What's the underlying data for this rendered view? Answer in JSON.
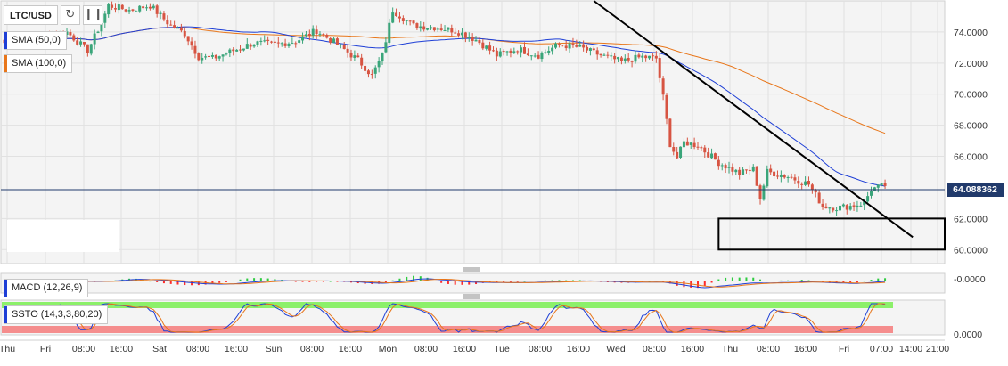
{
  "toolbar": {
    "symbol": "LTC/USD",
    "refresh_icon": "refresh-icon",
    "chart_type_icon": "bar-chart-icon"
  },
  "indicators": {
    "sma50": {
      "label": "SMA (50,0)",
      "color": "#1e3fd6"
    },
    "sma100": {
      "label": "SMA (100,0)",
      "color": "#e8761a"
    },
    "macd": {
      "label": "MACD (12,26,9)",
      "value_label": "-0.0000"
    },
    "ssto": {
      "label": "SSTO (14,3,3,80,20)",
      "value_label": "0.0000"
    }
  },
  "colors": {
    "bull": "#3aa57a",
    "bear": "#d75442",
    "price_line": "#213a6b",
    "overbought_band": "#8cf06a",
    "oversold_band": "#f58d8d"
  },
  "current_price_label": "64.088362",
  "chart_data": {
    "type": "candlestick",
    "symbol": "LTC/USD",
    "y_ticks": [
      "74.0000",
      "72.0000",
      "70.0000",
      "68.0000",
      "66.0000",
      "62.0000",
      "60.0000"
    ],
    "ylim": [
      59.1,
      76.0
    ],
    "current_price": 64.088362,
    "x_ticks": [
      "Thu",
      "Fri",
      "08:00",
      "16:00",
      "Sat",
      "08:00",
      "16:00",
      "Sun",
      "08:00",
      "16:00",
      "Mon",
      "08:00",
      "16:00",
      "Tue",
      "08:00",
      "16:00",
      "Wed",
      "08:00",
      "16:00",
      "Thu",
      "08:00",
      "16:00",
      "Fri",
      "07:00",
      "14:00",
      "21:00"
    ],
    "anchors": [
      [
        0,
        73.3
      ],
      [
        10,
        73.6
      ],
      [
        18,
        74.0
      ],
      [
        24,
        72.8
      ],
      [
        28,
        74.6
      ],
      [
        30,
        75.7
      ],
      [
        36,
        75.4
      ],
      [
        42,
        75.7
      ],
      [
        48,
        74.4
      ],
      [
        52,
        73.9
      ],
      [
        56,
        72.4
      ],
      [
        60,
        72.3
      ],
      [
        66,
        72.8
      ],
      [
        72,
        73.3
      ],
      [
        78,
        73.2
      ],
      [
        84,
        73.4
      ],
      [
        90,
        74.1
      ],
      [
        96,
        73.2
      ],
      [
        102,
        72.2
      ],
      [
        106,
        71.2
      ],
      [
        109,
        72.5
      ],
      [
        112,
        75.4
      ],
      [
        118,
        74.4
      ],
      [
        124,
        74.3
      ],
      [
        130,
        74.1
      ],
      [
        136,
        73.5
      ],
      [
        142,
        72.5
      ],
      [
        148,
        72.9
      ],
      [
        154,
        72.5
      ],
      [
        160,
        73.2
      ],
      [
        166,
        73.0
      ],
      [
        172,
        72.5
      ],
      [
        178,
        72.1
      ],
      [
        184,
        72.4
      ],
      [
        188,
        72.3
      ],
      [
        190,
        69.8
      ],
      [
        192,
        66.8
      ],
      [
        194,
        65.9
      ],
      [
        196,
        66.9
      ],
      [
        200,
        66.7
      ],
      [
        206,
        65.6
      ],
      [
        212,
        64.9
      ],
      [
        216,
        65.2
      ],
      [
        218,
        63.3
      ],
      [
        220,
        65.0
      ],
      [
        226,
        64.7
      ],
      [
        232,
        64.2
      ],
      [
        236,
        62.8
      ],
      [
        240,
        62.7
      ],
      [
        244,
        62.8
      ],
      [
        248,
        63.0
      ],
      [
        250,
        63.9
      ],
      [
        254,
        64.1
      ]
    ],
    "trendline": {
      "from": {
        "candle": 170,
        "price": 76.0
      },
      "to": {
        "candle": 262,
        "price": 60.8
      }
    },
    "support_box": {
      "x_start_candle": 206,
      "price_top": 62.0,
      "price_bottom": 60.0
    }
  }
}
